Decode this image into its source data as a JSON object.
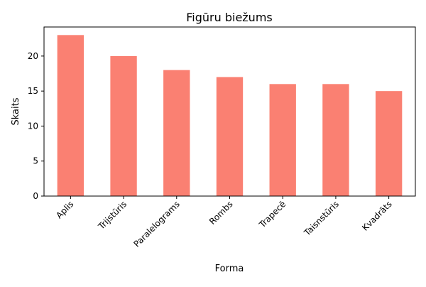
{
  "chart_data": {
    "type": "bar",
    "title": "Figūru biežums",
    "xlabel": "Forma",
    "ylabel": "Skaits",
    "categories": [
      "Aplis",
      "Trijstūris",
      "Paralelograms",
      "Rombs",
      "Trapecē",
      "Taisnstūris",
      "Kvadrāts"
    ],
    "values": [
      23,
      20,
      18,
      17,
      16,
      16,
      15
    ],
    "ylim": [
      0,
      24.15
    ],
    "yticks": [
      0,
      5,
      10,
      15,
      20
    ],
    "bar_color": "#fa8072",
    "grid": false,
    "legend": "none",
    "xtick_rotation_deg": 45
  }
}
